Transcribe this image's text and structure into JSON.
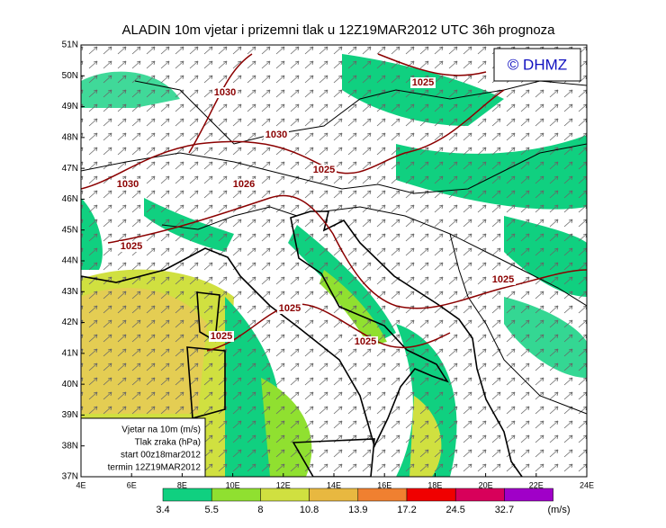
{
  "title": "ALADIN 10m vjetar i prizemni tlak u 12Z19MAR2012 UTC 36h prognoza",
  "badge": "© DHMZ",
  "lat_labels": [
    "37N",
    "38N",
    "39N",
    "40N",
    "41N",
    "42N",
    "43N",
    "44N",
    "45N",
    "46N",
    "47N",
    "48N",
    "49N",
    "50N",
    "51N"
  ],
  "lon_labels": [
    "4E",
    "6E",
    "8E",
    "10E",
    "12E",
    "14E",
    "16E",
    "18E",
    "20E",
    "22E",
    "24E"
  ],
  "isobars": [
    "1030",
    "1025",
    "1030",
    "1025",
    "1030",
    "1026",
    "1025",
    "1025",
    "1025",
    "1025",
    "1025"
  ],
  "info_box": [
    "Vjetar na 10m (m/s)",
    "Tlak zraka (hPa)",
    "start 00z18mar2012",
    "termin 12Z19MAR2012"
  ],
  "colorbar": {
    "labels": [
      "3.4",
      "5.5",
      "8",
      "10.8",
      "13.9",
      "17.2",
      "24.5",
      "32.7"
    ],
    "colors": [
      "#10d080",
      "#90e030",
      "#d0e040",
      "#e8b840",
      "#f08030",
      "#f00000",
      "#d8005a",
      "#a000c8"
    ],
    "unit": "(m/s)"
  }
}
